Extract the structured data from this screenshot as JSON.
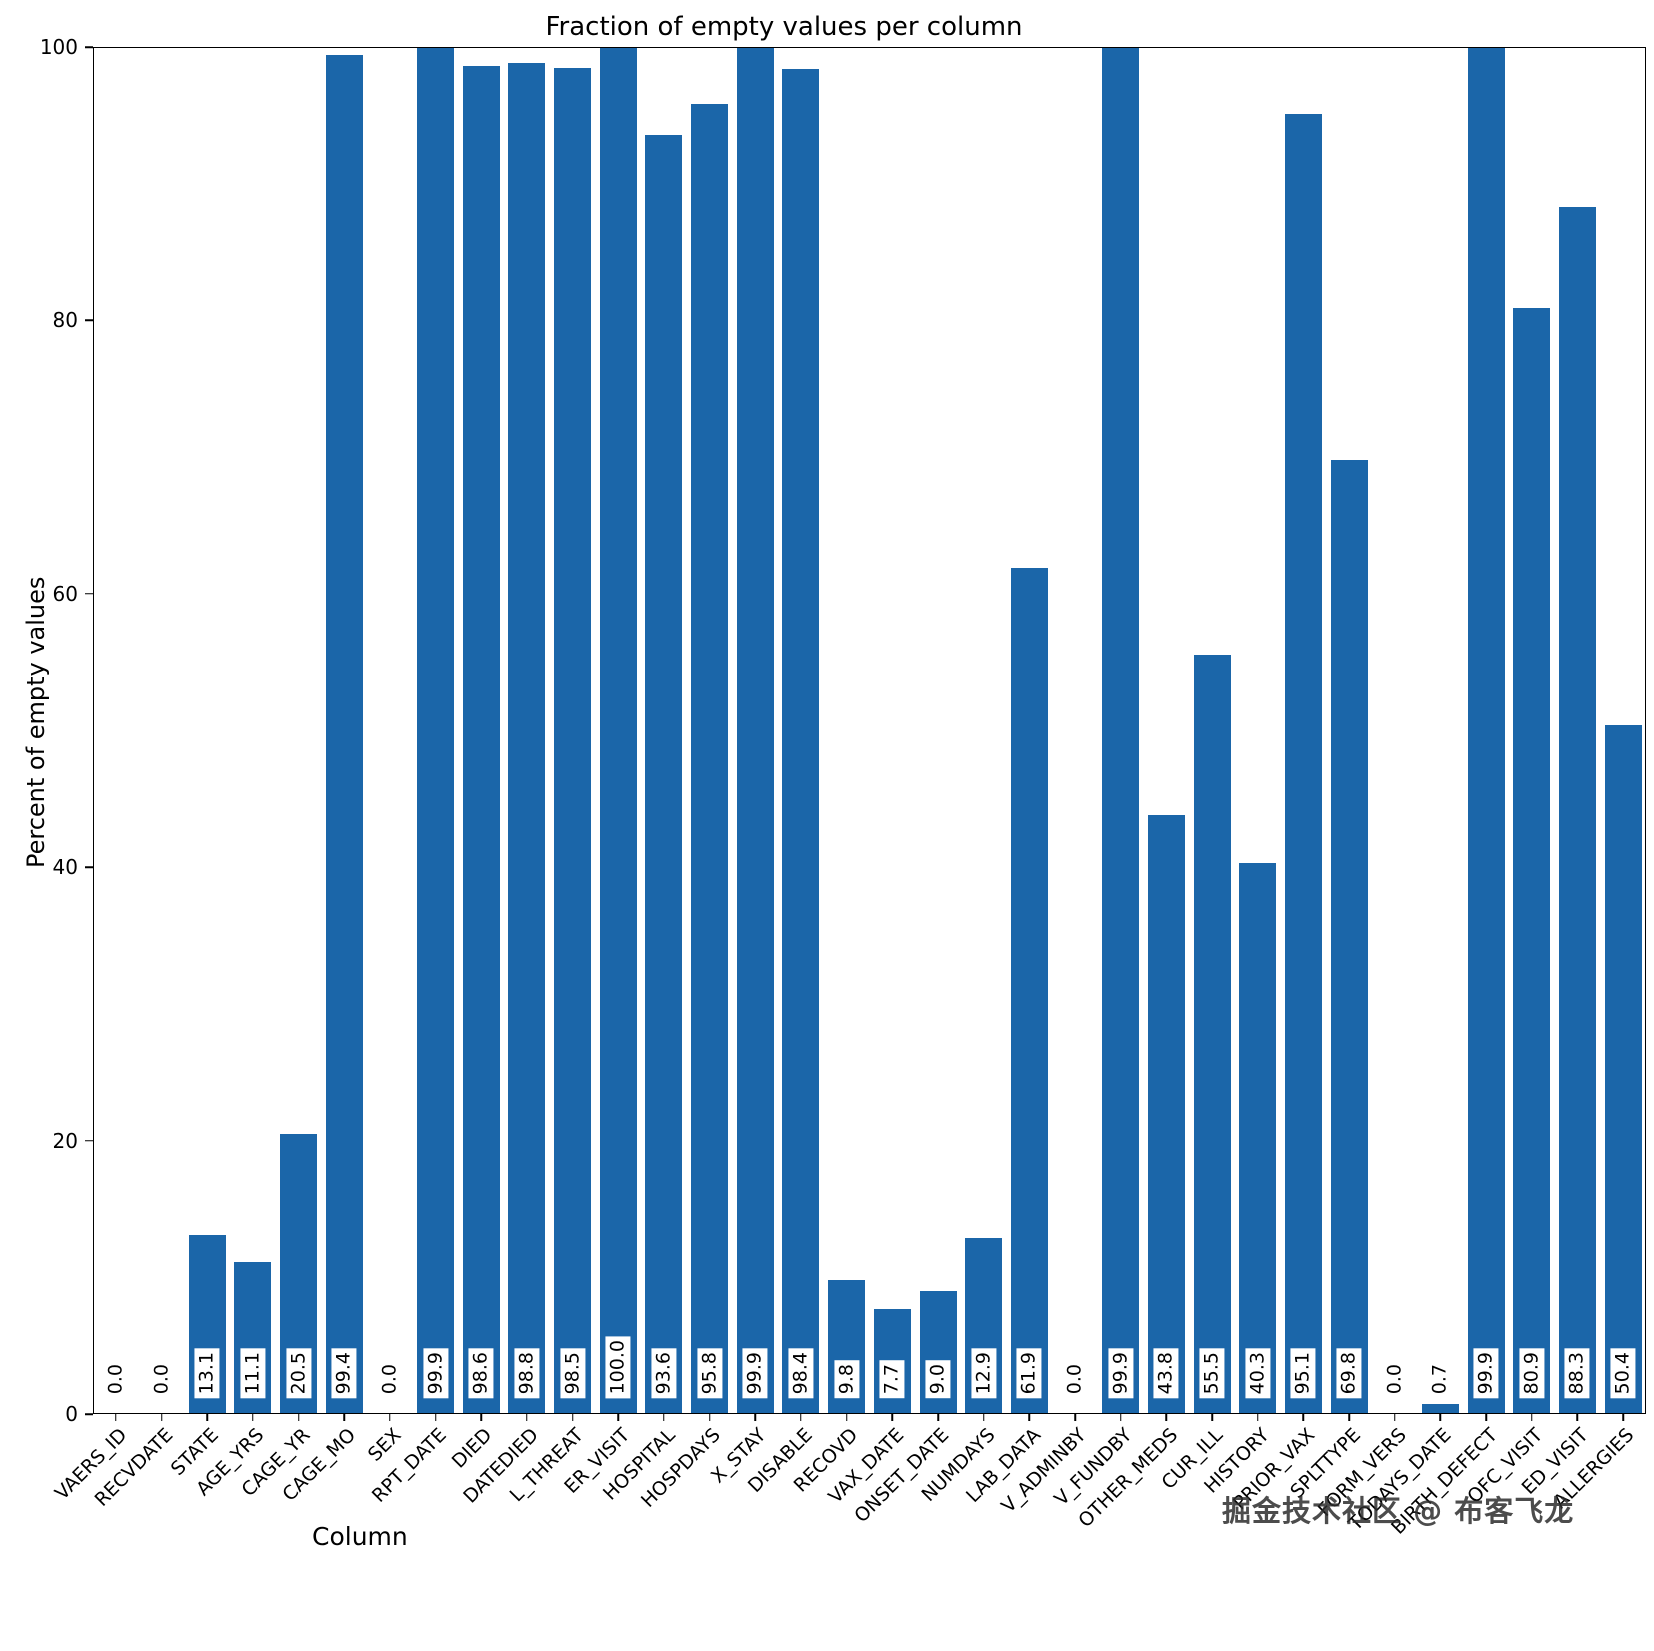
{
  "figure": {
    "title": "Fraction of empty values per column",
    "xlabel": "Column",
    "ylabel": "Percent of empty values",
    "watermark": "掘金技术社区 @ 布客飞龙",
    "bar_color": "#1b66a9"
  },
  "chart_data": {
    "type": "bar",
    "title": "Fraction of empty values per column",
    "xlabel": "Column",
    "ylabel": "Percent of empty values",
    "ylim": [
      0,
      100
    ],
    "grid": false,
    "legend": "none",
    "yticks": [
      0,
      20,
      40,
      60,
      80,
      100
    ],
    "categories": [
      "VAERS_ID",
      "RECVDATE",
      "STATE",
      "AGE_YRS",
      "CAGE_YR",
      "CAGE_MO",
      "SEX",
      "RPT_DATE",
      "DIED",
      "DATEDIED",
      "L_THREAT",
      "ER_VISIT",
      "HOSPITAL",
      "HOSPDAYS",
      "X_STAY",
      "DISABLE",
      "RECOVD",
      "VAX_DATE",
      "ONSET_DATE",
      "NUMDAYS",
      "LAB_DATA",
      "V_ADMINBY",
      "V_FUNDBY",
      "OTHER_MEDS",
      "CUR_ILL",
      "HISTORY",
      "PRIOR_VAX",
      "SPLTTYPE",
      "FORM_VERS",
      "TODAYS_DATE",
      "BIRTH_DEFECT",
      "OFC_VISIT",
      "ED_VISIT",
      "ALLERGIES"
    ],
    "values": [
      0.0,
      0.0,
      13.1,
      11.1,
      20.5,
      99.4,
      0.0,
      99.9,
      98.6,
      98.8,
      98.5,
      100.0,
      93.6,
      95.8,
      99.9,
      98.4,
      9.8,
      7.7,
      9.0,
      12.9,
      61.9,
      0.0,
      99.9,
      43.8,
      55.5,
      40.3,
      95.1,
      69.8,
      0.0,
      0.7,
      99.9,
      80.9,
      88.3,
      50.4
    ],
    "bar_labels": [
      "0.0",
      "0.0",
      "13.1",
      "11.1",
      "20.5",
      "99.4",
      "0.0",
      "99.9",
      "98.6",
      "98.8",
      "98.5",
      "100.0",
      "93.6",
      "95.8",
      "99.9",
      "98.4",
      "9.8",
      "7.7",
      "9.0",
      "12.9",
      "61.9",
      "0.0",
      "99.9",
      "43.8",
      "55.5",
      "40.3",
      "95.1",
      "69.8",
      "0.0",
      "0.7",
      "99.9",
      "80.9",
      "88.3",
      "50.4"
    ]
  }
}
